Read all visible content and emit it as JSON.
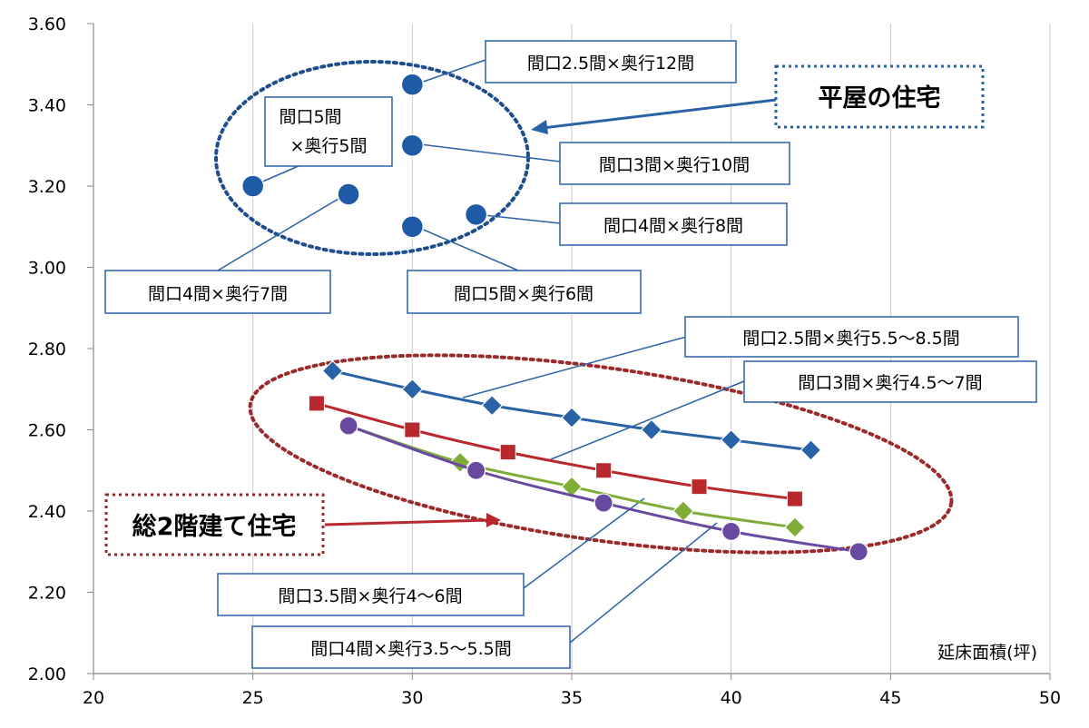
{
  "chart_data": {
    "type": "scatter",
    "xlabel": "延床面積(坪)",
    "xlim": [
      20,
      50
    ],
    "ylim": [
      2.0,
      3.6
    ],
    "x_ticks": [
      "20",
      "25",
      "30",
      "35",
      "40",
      "45",
      "50"
    ],
    "y_ticks": [
      "2.00",
      "2.20",
      "2.40",
      "2.60",
      "2.80",
      "3.00",
      "3.20",
      "3.40",
      "3.60"
    ],
    "grid": "vertical",
    "colors": {
      "blue": "#2a62a7",
      "red": "#b8282c",
      "green": "#7fad38",
      "purple": "#6a4aa0",
      "scatter": "#1f5aa6",
      "group_one_story": "#1f4e8c",
      "group_two_story": "#9b2a2a"
    },
    "one_story_points": [
      {
        "x": 30,
        "y": 3.45,
        "label": "間口2.5間×奥行12間"
      },
      {
        "x": 30,
        "y": 3.3,
        "label": "間口3間×奥行10間"
      },
      {
        "x": 25,
        "y": 3.2,
        "label": "間口5間×奥行5間"
      },
      {
        "x": 28,
        "y": 3.18,
        "label": "間口4間×奥行7間"
      },
      {
        "x": 32,
        "y": 3.13,
        "label": "間口4間×奥行8間"
      },
      {
        "x": 30,
        "y": 3.1,
        "label": "間口5間×奥行6間"
      }
    ],
    "series": [
      {
        "name": "間口2.5間×奥行5.5～8.5間",
        "marker": "diamond",
        "color": "blue",
        "x": [
          27.5,
          30,
          32.5,
          35,
          37.5,
          40,
          42.5
        ],
        "y": [
          2.745,
          2.7,
          2.66,
          2.63,
          2.6,
          2.575,
          2.55
        ]
      },
      {
        "name": "間口3間×奥行4.5～7間",
        "marker": "square",
        "color": "red",
        "x": [
          27,
          30,
          33,
          36,
          39,
          42
        ],
        "y": [
          2.665,
          2.6,
          2.545,
          2.5,
          2.46,
          2.43
        ]
      },
      {
        "name": "間口3.5間×奥行4～6間",
        "marker": "diamond",
        "color": "green",
        "x": [
          28,
          31.5,
          35,
          38.5,
          42
        ],
        "y": [
          2.61,
          2.52,
          2.46,
          2.4,
          2.36
        ]
      },
      {
        "name": "間口4間×奥行3.5～5.5間",
        "marker": "circle",
        "color": "purple",
        "x": [
          28,
          32,
          36,
          40,
          44
        ],
        "y": [
          2.61,
          2.5,
          2.42,
          2.35,
          2.3
        ]
      }
    ],
    "group_labels": {
      "one_story": "平屋の住宅",
      "two_story": "総2階建て住宅"
    },
    "point_labels": {
      "p1": "間口2.5間×奥行12間",
      "p2_line1": "間口5間",
      "p2_line2": "×奥行5間",
      "p3": "間口3間×奥行10間",
      "p4": "間口4間×奥行8間",
      "p5": "間口4間×奥行7間",
      "p6": "間口5間×奥行6間"
    }
  }
}
